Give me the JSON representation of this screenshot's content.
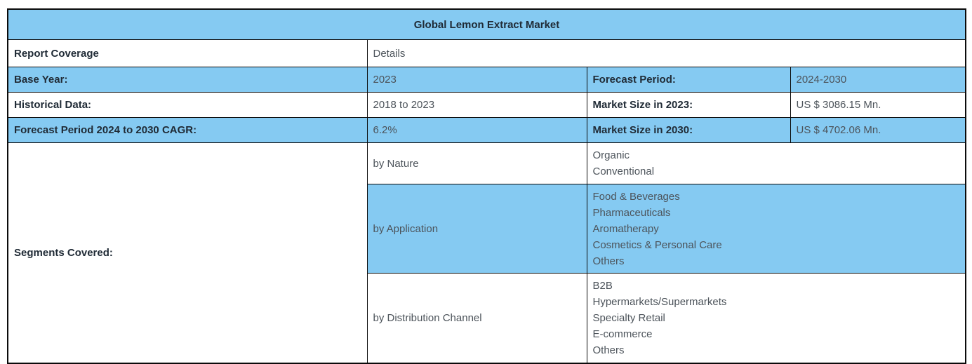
{
  "colors": {
    "row_accent": "#85caf2",
    "border": "#0b0b0b",
    "label_text": "#202b36",
    "value_text": "#4c535a"
  },
  "table": {
    "title": "Global Lemon Extract Market",
    "coverage": {
      "label": "Report Coverage",
      "value": "Details"
    },
    "rows": [
      {
        "label": "Base Year:",
        "value": "2023",
        "label2": "Forecast Period:",
        "value2": "2024-2030"
      },
      {
        "label": "Historical Data:",
        "value": "2018 to 2023",
        "label2": "Market Size in 2023:",
        "value2": "US $ 3086.15 Mn."
      },
      {
        "label": "Forecast Period 2024 to 2030 CAGR:",
        "value": "6.2%",
        "label2": "Market Size in 2030:",
        "value2": "US $ 4702.06 Mn."
      }
    ],
    "segments": {
      "label": "Segments Covered:",
      "groups": [
        {
          "name": "by Nature",
          "options": [
            "Organic",
            "Conventional"
          ]
        },
        {
          "name": "by Application",
          "options": [
            "Food & Beverages",
            "Pharmaceuticals",
            "Aromatherapy",
            "Cosmetics & Personal Care",
            "Others"
          ]
        },
        {
          "name": "by Distribution Channel",
          "options": [
            "B2B",
            "Hypermarkets/Supermarkets",
            "Specialty Retail",
            "E-commerce",
            "Others"
          ]
        }
      ]
    }
  }
}
